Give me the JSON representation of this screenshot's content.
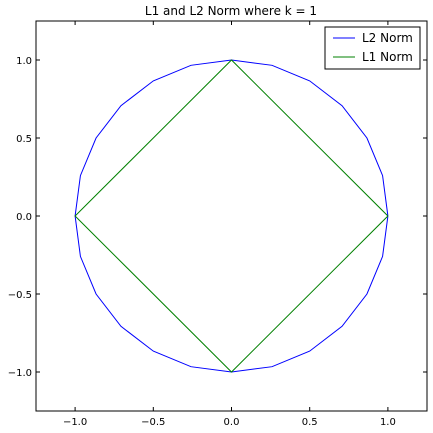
{
  "chart_data": {
    "type": "line",
    "title": "L1 and L2 Norm where k = 1",
    "xlabel": "",
    "ylabel": "",
    "xlim": [
      -1.25,
      1.25
    ],
    "ylim": [
      -1.25,
      1.25
    ],
    "xticks": [
      -1.0,
      -0.5,
      0.0,
      0.5,
      1.0
    ],
    "yticks": [
      -1.0,
      -0.5,
      0.0,
      0.5,
      1.0
    ],
    "xtick_labels": [
      "−1.0",
      "−0.5",
      "0.0",
      "0.5",
      "1.0"
    ],
    "ytick_labels": [
      "−1.0",
      "−0.5",
      "0.0",
      "0.5",
      "1.0"
    ],
    "grid": false,
    "legend_position": "top-right",
    "series": [
      {
        "name": "L2 Norm",
        "color": "#0000ff",
        "description": "unit circle x^2 + y^2 = 1",
        "x": [
          1.0,
          0.966,
          0.866,
          0.707,
          0.5,
          0.259,
          0.0,
          -0.259,
          -0.5,
          -0.707,
          -0.866,
          -0.966,
          -1.0,
          -0.966,
          -0.866,
          -0.707,
          -0.5,
          -0.259,
          0.0,
          0.259,
          0.5,
          0.707,
          0.866,
          0.966,
          1.0
        ],
        "y": [
          0.0,
          0.259,
          0.5,
          0.707,
          0.866,
          0.966,
          1.0,
          0.966,
          0.866,
          0.707,
          0.5,
          0.259,
          0.0,
          -0.259,
          -0.5,
          -0.707,
          -0.866,
          -0.966,
          -1.0,
          -0.966,
          -0.866,
          -0.707,
          -0.5,
          -0.259,
          0.0
        ]
      },
      {
        "name": "L1 Norm",
        "color": "#008000",
        "description": "diamond |x| + |y| = 1",
        "x": [
          1.0,
          0.0,
          -1.0,
          0.0,
          1.0
        ],
        "y": [
          0.0,
          1.0,
          0.0,
          -1.0,
          0.0
        ]
      }
    ]
  }
}
